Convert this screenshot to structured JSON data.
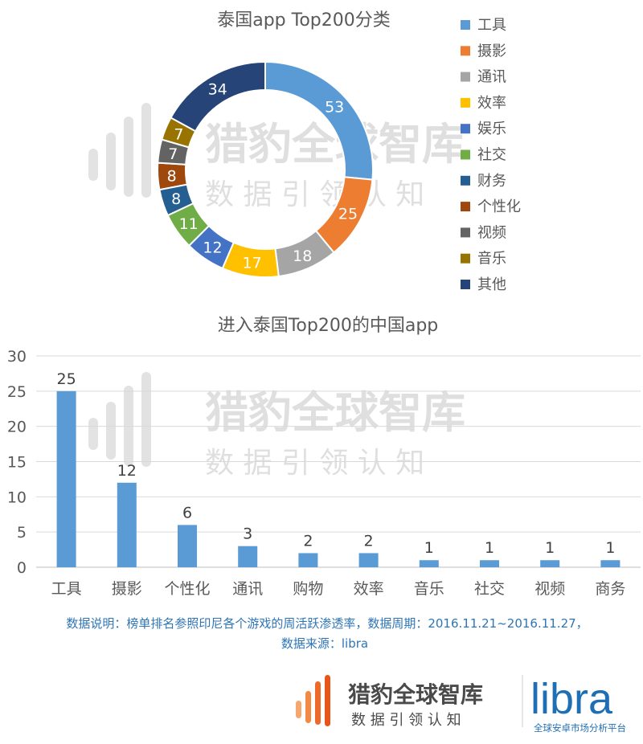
{
  "watermark": {
    "title": "猎豹全球智库",
    "subtitle": "数 据 引 领 认 知"
  },
  "chart_data": [
    {
      "type": "pie",
      "variant": "donut",
      "title": "泰国app Top200分类",
      "categories": [
        "工具",
        "摄影",
        "通讯",
        "效率",
        "娱乐",
        "社交",
        "财务",
        "个性化",
        "视频",
        "音乐",
        "其他"
      ],
      "values": [
        53,
        25,
        18,
        17,
        12,
        11,
        8,
        8,
        7,
        7,
        34
      ],
      "colors": [
        "#5B9BD5",
        "#ED7D31",
        "#A5A5A5",
        "#FFC000",
        "#4472C4",
        "#70AD47",
        "#255E91",
        "#9E480E",
        "#636363",
        "#997300",
        "#264478"
      ],
      "legend_position": "right"
    },
    {
      "type": "bar",
      "title": "进入泰国Top200的中国app",
      "categories": [
        "工具",
        "摄影",
        "个性化",
        "通讯",
        "购物",
        "效率",
        "音乐",
        "社交",
        "视频",
        "商务"
      ],
      "values": [
        25,
        12,
        6,
        3,
        2,
        2,
        1,
        1,
        1,
        1
      ],
      "ylim": [
        0,
        30
      ],
      "yticks": [
        0,
        5,
        10,
        15,
        20,
        25,
        30
      ],
      "bar_color": "#5B9BD5",
      "grid": true
    }
  ],
  "footnote": {
    "line1": "数据说明：榜单排名参照印尼各个游戏的周活跃渗透率，数据周期：2016.11.21~2016.11.27，",
    "line2": "数据来源：libra"
  },
  "footer": {
    "cheetah_title": "猎豹全球智库",
    "cheetah_subtitle": "数 据 引 领 认 知",
    "libra_logo": "libra",
    "libra_tagline": "全球安卓市场分析平台",
    "brand_orange": "#EE6A2B",
    "brand_blue": "#1F6FB5"
  }
}
